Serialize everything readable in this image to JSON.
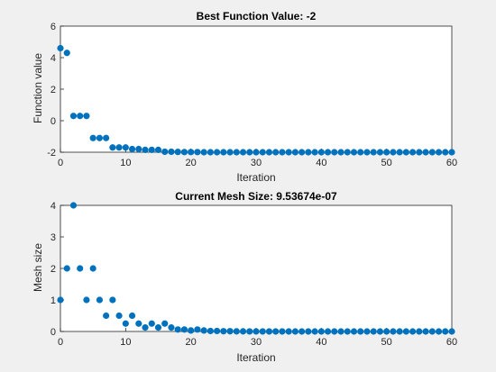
{
  "chart_data": [
    {
      "type": "scatter",
      "title": "Best Function Value: -2",
      "xlabel": "Iteration",
      "ylabel": "Function value",
      "xlim": [
        0,
        60
      ],
      "ylim": [
        -2,
        6
      ],
      "xticks": [
        0,
        10,
        20,
        30,
        40,
        50,
        60
      ],
      "yticks": [
        -2,
        0,
        2,
        4,
        6
      ],
      "grid": true,
      "marker_color": "#0072bd",
      "x": [
        0,
        1,
        2,
        3,
        4,
        5,
        6,
        7,
        8,
        9,
        10,
        11,
        12,
        13,
        14,
        15,
        16,
        17,
        18,
        19,
        20,
        21,
        22,
        23,
        24,
        25,
        26,
        27,
        28,
        29,
        30,
        31,
        32,
        33,
        34,
        35,
        36,
        37,
        38,
        39,
        40,
        41,
        42,
        43,
        44,
        45,
        46,
        47,
        48,
        49,
        50,
        51,
        52,
        53,
        54,
        55,
        56,
        57,
        58,
        59,
        60
      ],
      "y": [
        4.6,
        4.3,
        0.3,
        0.3,
        0.3,
        -1.1,
        -1.1,
        -1.1,
        -1.7,
        -1.7,
        -1.7,
        -1.8,
        -1.8,
        -1.85,
        -1.85,
        -1.85,
        -1.97,
        -1.97,
        -1.98,
        -1.99,
        -1.99,
        -1.99,
        -2,
        -2,
        -2,
        -2,
        -2,
        -2,
        -2,
        -2,
        -2,
        -2,
        -2,
        -2,
        -2,
        -2,
        -2,
        -2,
        -2,
        -2,
        -2,
        -2,
        -2,
        -2,
        -2,
        -2,
        -2,
        -2,
        -2,
        -2,
        -2,
        -2,
        -2,
        -2,
        -2,
        -2,
        -2,
        -2,
        -2,
        -2,
        -2
      ]
    },
    {
      "type": "scatter",
      "title": "Current Mesh Size: 9.53674e-07",
      "xlabel": "Iteration",
      "ylabel": "Mesh size",
      "xlim": [
        0,
        60
      ],
      "ylim": [
        0,
        4
      ],
      "xticks": [
        0,
        10,
        20,
        30,
        40,
        50,
        60
      ],
      "yticks": [
        0,
        1,
        2,
        3,
        4
      ],
      "grid": true,
      "marker_color": "#0072bd",
      "x": [
        0,
        1,
        2,
        3,
        4,
        5,
        6,
        7,
        8,
        9,
        10,
        11,
        12,
        13,
        14,
        15,
        16,
        17,
        18,
        19,
        20,
        21,
        22,
        23,
        24,
        25,
        26,
        27,
        28,
        29,
        30,
        31,
        32,
        33,
        34,
        35,
        36,
        37,
        38,
        39,
        40,
        41,
        42,
        43,
        44,
        45,
        46,
        47,
        48,
        49,
        50,
        51,
        52,
        53,
        54,
        55,
        56,
        57,
        58,
        59,
        60
      ],
      "y": [
        1,
        2,
        4,
        2,
        1,
        2,
        1,
        0.5,
        1,
        0.5,
        0.25,
        0.5,
        0.25,
        0.125,
        0.25,
        0.125,
        0.25,
        0.125,
        0.0625,
        0.0625,
        0.03125,
        0.0625,
        0.03125,
        0.0156,
        0.0156,
        0.0078,
        0.0078,
        0.0039,
        0.0039,
        0.002,
        0.002,
        0.001,
        0.001,
        0.0005,
        0.0005,
        0.0002,
        0.0002,
        0.0001,
        0.0001,
        0.0001,
        0,
        0,
        0,
        0,
        0,
        0,
        0,
        0,
        0,
        0,
        0,
        0,
        0,
        0,
        0,
        0,
        0,
        0,
        0,
        0,
        0
      ]
    }
  ]
}
